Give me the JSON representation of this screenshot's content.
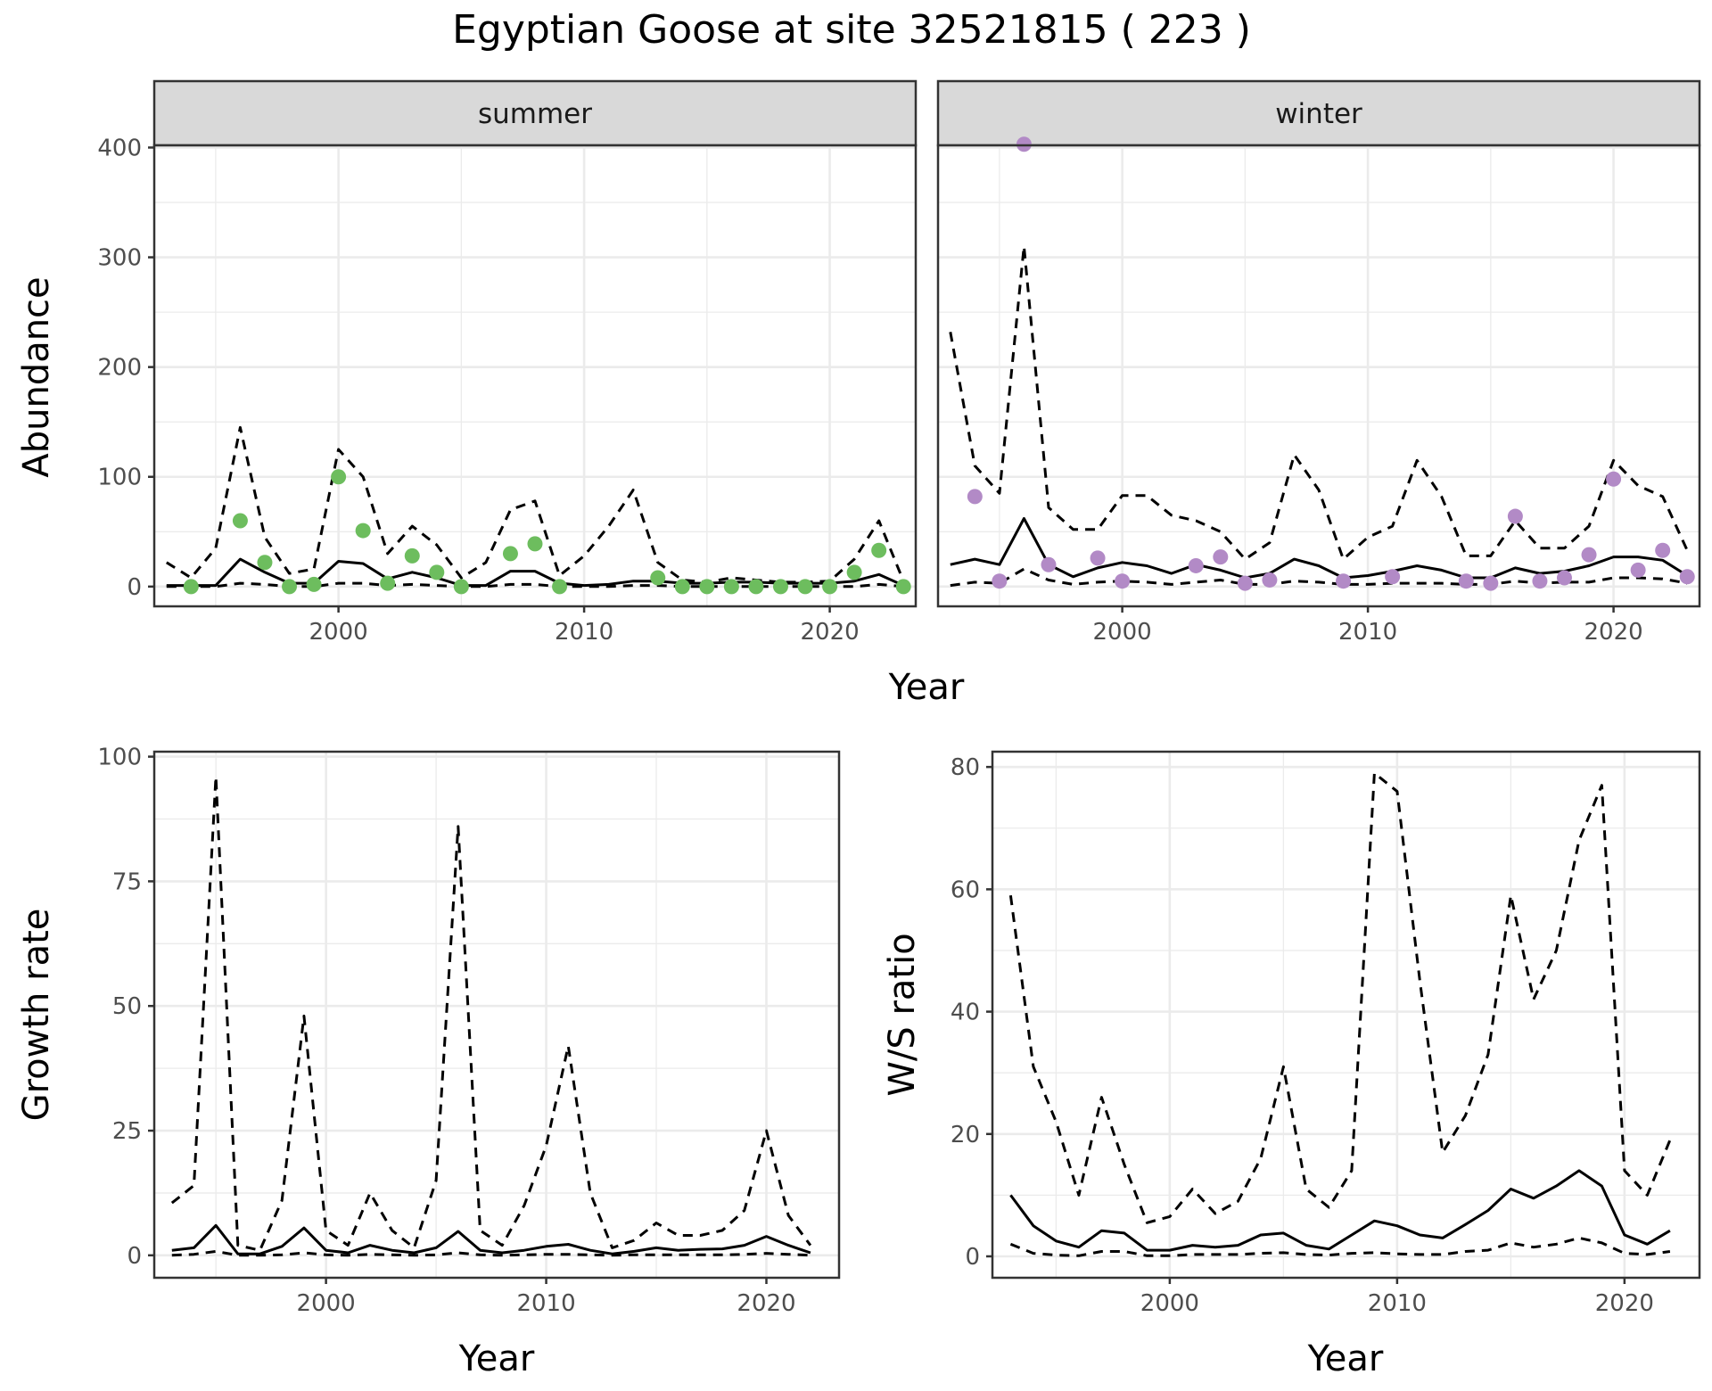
{
  "title": "Egyptian Goose at site 32521815 ( 223 )",
  "colors": {
    "summer": "#6dbd5e",
    "winter": "#b28ac6",
    "line": "#000000",
    "grid": "#ebebeb",
    "strip": "#d9d9d9"
  },
  "chart_data": [
    {
      "type": "line",
      "panel": "summer",
      "strip": "summer",
      "xlabel": "Year",
      "ylabel": "Abundance",
      "xlim": [
        1992.5,
        2023.5
      ],
      "ylim": [
        -18,
        402
      ],
      "xticks": [
        2000,
        2010,
        2020
      ],
      "yticks": [
        0,
        100,
        200,
        300,
        400
      ],
      "points": {
        "x": [
          1994,
          1996,
          1997,
          1998,
          1999,
          2000,
          2001,
          2002,
          2003,
          2004,
          2005,
          2007,
          2008,
          2009,
          2013,
          2014,
          2015,
          2016,
          2017,
          2018,
          2019,
          2020,
          2021,
          2022,
          2023
        ],
        "y": [
          0,
          60,
          22,
          0,
          2,
          100,
          51,
          3,
          28,
          13,
          0,
          30,
          39,
          0,
          8,
          0,
          0,
          0,
          0,
          0,
          0,
          0,
          13,
          33,
          0
        ]
      },
      "series": [
        {
          "name": "mean",
          "style": "solid",
          "x": [
            1993,
            1994,
            1995,
            1996,
            1997,
            1998,
            1999,
            2000,
            2001,
            2002,
            2003,
            2004,
            2005,
            2006,
            2007,
            2008,
            2009,
            2010,
            2011,
            2012,
            2013,
            2014,
            2015,
            2016,
            2017,
            2018,
            2019,
            2020,
            2021,
            2022,
            2023
          ],
          "y": [
            1,
            1,
            1,
            25,
            13,
            3,
            3,
            23,
            21,
            7,
            13,
            8,
            1,
            1,
            14,
            14,
            3,
            1,
            2,
            5,
            5,
            3,
            3,
            4,
            4,
            3,
            3,
            3,
            5,
            11,
            1
          ]
        },
        {
          "name": "upper",
          "style": "dashed",
          "x": [
            1993,
            1994,
            1995,
            1996,
            1997,
            1998,
            1999,
            2000,
            2001,
            2002,
            2003,
            2004,
            2005,
            2006,
            2007,
            2008,
            2009,
            2010,
            2011,
            2012,
            2013,
            2014,
            2015,
            2016,
            2017,
            2018,
            2019,
            2020,
            2021,
            2022,
            2023
          ],
          "y": [
            22,
            8,
            35,
            145,
            45,
            12,
            16,
            125,
            100,
            30,
            55,
            38,
            8,
            22,
            70,
            78,
            10,
            28,
            55,
            88,
            22,
            6,
            4,
            8,
            6,
            4,
            4,
            5,
            25,
            60,
            5
          ]
        },
        {
          "name": "lower",
          "style": "dashed",
          "x": [
            1993,
            1994,
            1995,
            1996,
            1997,
            1998,
            1999,
            2000,
            2001,
            2002,
            2003,
            2004,
            2005,
            2006,
            2007,
            2008,
            2009,
            2010,
            2011,
            2012,
            2013,
            2014,
            2015,
            2016,
            2017,
            2018,
            2019,
            2020,
            2021,
            2022,
            2023
          ],
          "y": [
            0,
            0,
            0,
            3,
            2,
            0,
            0,
            3,
            3,
            1,
            2,
            1,
            0,
            0,
            2,
            2,
            0,
            0,
            0,
            1,
            1,
            0,
            0,
            0,
            0,
            0,
            0,
            0,
            0,
            2,
            0
          ]
        }
      ]
    },
    {
      "type": "line",
      "panel": "winter",
      "strip": "winter",
      "xlabel": "Year",
      "ylabel": "Abundance",
      "xlim": [
        1992.5,
        2023.5
      ],
      "ylim": [
        -18,
        402
      ],
      "xticks": [
        2000,
        2010,
        2020
      ],
      "yticks": [
        0,
        100,
        200,
        300,
        400
      ],
      "points": {
        "x": [
          1994,
          1995,
          1996,
          1997,
          1999,
          2000,
          2003,
          2004,
          2005,
          2006,
          2009,
          2011,
          2014,
          2015,
          2016,
          2017,
          2018,
          2019,
          2020,
          2021,
          2022,
          2023
        ],
        "y": [
          82,
          5,
          403,
          20,
          26,
          5,
          19,
          27,
          3,
          6,
          5,
          9,
          5,
          3,
          64,
          5,
          8,
          29,
          98,
          15,
          33,
          9
        ]
      },
      "series": [
        {
          "name": "mean",
          "style": "solid",
          "x": [
            1993,
            1994,
            1995,
            1996,
            1997,
            1998,
            1999,
            2000,
            2001,
            2002,
            2003,
            2004,
            2005,
            2006,
            2007,
            2008,
            2009,
            2010,
            2011,
            2012,
            2013,
            2014,
            2015,
            2016,
            2017,
            2018,
            2019,
            2020,
            2021,
            2022,
            2023
          ],
          "y": [
            20,
            25,
            20,
            62,
            20,
            9,
            17,
            22,
            19,
            12,
            20,
            15,
            8,
            12,
            25,
            19,
            8,
            10,
            14,
            19,
            15,
            8,
            8,
            17,
            12,
            14,
            19,
            27,
            27,
            24,
            10
          ]
        },
        {
          "name": "upper",
          "style": "dashed",
          "x": [
            1993,
            1994,
            1995,
            1996,
            1997,
            1998,
            1999,
            2000,
            2001,
            2002,
            2003,
            2004,
            2005,
            2006,
            2007,
            2008,
            2009,
            2010,
            2011,
            2012,
            2013,
            2014,
            2015,
            2016,
            2017,
            2018,
            2019,
            2020,
            2021,
            2022,
            2023
          ],
          "y": [
            232,
            110,
            85,
            310,
            72,
            52,
            52,
            83,
            83,
            65,
            60,
            50,
            25,
            40,
            120,
            88,
            25,
            45,
            55,
            115,
            82,
            28,
            28,
            60,
            35,
            35,
            55,
            115,
            92,
            82,
            33
          ]
        },
        {
          "name": "lower",
          "style": "dashed",
          "x": [
            1993,
            1994,
            1995,
            1996,
            1997,
            1998,
            1999,
            2000,
            2001,
            2002,
            2003,
            2004,
            2005,
            2006,
            2007,
            2008,
            2009,
            2010,
            2011,
            2012,
            2013,
            2014,
            2015,
            2016,
            2017,
            2018,
            2019,
            2020,
            2021,
            2022,
            2023
          ],
          "y": [
            1,
            4,
            3,
            16,
            6,
            2,
            4,
            5,
            4,
            2,
            4,
            6,
            2,
            2,
            5,
            4,
            2,
            2,
            3,
            3,
            3,
            2,
            2,
            5,
            3,
            4,
            4,
            8,
            8,
            7,
            3
          ]
        }
      ]
    },
    {
      "type": "line",
      "panel": "growth",
      "xlabel": "Year",
      "ylabel": "Growth rate",
      "xlim": [
        1992.2,
        2023.3
      ],
      "ylim": [
        -4.5,
        101
      ],
      "xticks": [
        2000,
        2010,
        2020
      ],
      "yticks": [
        0,
        25,
        50,
        75,
        100
      ],
      "series": [
        {
          "name": "mean",
          "style": "solid",
          "x": [
            1993,
            1994,
            1995,
            1996,
            1997,
            1998,
            1999,
            2000,
            2001,
            2002,
            2003,
            2004,
            2005,
            2006,
            2007,
            2008,
            2009,
            2010,
            2011,
            2012,
            2013,
            2014,
            2015,
            2016,
            2017,
            2018,
            2019,
            2020,
            2021,
            2022
          ],
          "y": [
            1,
            1.5,
            6,
            0.3,
            0.3,
            1.8,
            5.5,
            1,
            0.5,
            2,
            1,
            0.5,
            1.5,
            4.8,
            1,
            0.5,
            1,
            1.8,
            2.2,
            1,
            0.3,
            0.8,
            1.5,
            1,
            1.2,
            1.3,
            2,
            3.8,
            2,
            0.5
          ]
        },
        {
          "name": "upper",
          "style": "dashed",
          "x": [
            1993,
            1994,
            1995,
            1996,
            1997,
            1998,
            1999,
            2000,
            2001,
            2002,
            2003,
            2004,
            2005,
            2006,
            2007,
            2008,
            2009,
            2010,
            2011,
            2012,
            2013,
            2014,
            2015,
            2016,
            2017,
            2018,
            2019,
            2020,
            2021,
            2022
          ],
          "y": [
            10.5,
            14,
            96,
            2,
            1,
            11,
            48,
            5,
            2,
            12.5,
            5,
            1.5,
            15,
            86,
            5,
            2,
            10,
            22,
            42,
            12.5,
            1.5,
            3,
            6.5,
            4,
            4,
            5,
            9,
            25,
            8,
            2
          ]
        },
        {
          "name": "lower",
          "style": "dashed",
          "x": [
            1993,
            1994,
            1995,
            1996,
            1997,
            1998,
            1999,
            2000,
            2001,
            2002,
            2003,
            2004,
            2005,
            2006,
            2007,
            2008,
            2009,
            2010,
            2011,
            2012,
            2013,
            2014,
            2015,
            2016,
            2017,
            2018,
            2019,
            2020,
            2021,
            2022
          ],
          "y": [
            0,
            0.2,
            0.8,
            0,
            0,
            0.1,
            0.5,
            0.1,
            0,
            0.2,
            0.1,
            0,
            0.1,
            0.5,
            0.1,
            0,
            0.1,
            0.2,
            0.2,
            0.1,
            0,
            0.1,
            0.1,
            0.1,
            0.1,
            0.1,
            0.2,
            0.4,
            0.2,
            0
          ]
        }
      ]
    },
    {
      "type": "line",
      "panel": "ratio",
      "xlabel": "Year",
      "ylabel": "W/S ratio",
      "xlim": [
        1992.2,
        2023.3
      ],
      "ylim": [
        -3.5,
        82.5
      ],
      "xticks": [
        2000,
        2010,
        2020
      ],
      "yticks": [
        0,
        20,
        40,
        60,
        80
      ],
      "series": [
        {
          "name": "mean",
          "style": "solid",
          "x": [
            1993,
            1994,
            1995,
            1996,
            1997,
            1998,
            1999,
            2000,
            2001,
            2002,
            2003,
            2004,
            2005,
            2006,
            2007,
            2008,
            2009,
            2010,
            2011,
            2012,
            2013,
            2014,
            2015,
            2016,
            2017,
            2018,
            2019,
            2020,
            2021,
            2022
          ],
          "y": [
            10,
            5,
            2.5,
            1.5,
            4.2,
            3.8,
            1,
            1,
            1.8,
            1.5,
            1.8,
            3.5,
            3.8,
            1.8,
            1.2,
            3.5,
            5.8,
            5,
            3.5,
            3,
            5.2,
            7.5,
            11,
            9.5,
            11.5,
            14,
            11.5,
            3.5,
            2,
            4.2
          ]
        },
        {
          "name": "upper",
          "style": "dashed",
          "x": [
            1993,
            1994,
            1995,
            1996,
            1997,
            1998,
            1999,
            2000,
            2001,
            2002,
            2003,
            2004,
            2005,
            2006,
            2007,
            2008,
            2009,
            2010,
            2011,
            2012,
            2013,
            2014,
            2015,
            2016,
            2017,
            2018,
            2019,
            2020,
            2021,
            2022
          ],
          "y": [
            59,
            31,
            22,
            10,
            26,
            15,
            5.5,
            6.5,
            11,
            7,
            9,
            16,
            31,
            11,
            8,
            14,
            79,
            76,
            45,
            17,
            23,
            33,
            59,
            42,
            50,
            68,
            77,
            14,
            10,
            19
          ]
        },
        {
          "name": "lower",
          "style": "dashed",
          "x": [
            1993,
            1994,
            1995,
            1996,
            1997,
            1998,
            1999,
            2000,
            2001,
            2002,
            2003,
            2004,
            2005,
            2006,
            2007,
            2008,
            2009,
            2010,
            2011,
            2012,
            2013,
            2014,
            2015,
            2016,
            2017,
            2018,
            2019,
            2020,
            2021,
            2022
          ],
          "y": [
            2,
            0.5,
            0.2,
            0.1,
            0.8,
            0.8,
            0.1,
            0.1,
            0.3,
            0.3,
            0.3,
            0.5,
            0.6,
            0.3,
            0.2,
            0.5,
            0.6,
            0.4,
            0.3,
            0.3,
            0.8,
            1,
            2.2,
            1.5,
            2,
            3,
            2.2,
            0.5,
            0.3,
            0.8
          ]
        }
      ]
    }
  ]
}
